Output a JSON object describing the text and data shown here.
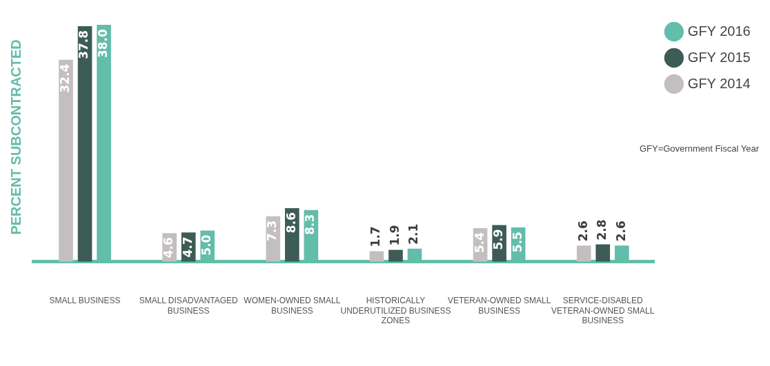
{
  "chart_data": {
    "type": "bar",
    "ylabel": "PERCENT SUBCONTRACTED",
    "categories": [
      "SMALL BUSINESS",
      "SMALL DISADVANTAGED BUSINESS",
      "WOMEN-OWNED SMALL BUSINESS",
      "HISTORICALLY UNDERUTILIZED BUSINESS ZONES",
      "VETERAN-OWNED SMALL BUSINESS",
      "SERVICE-DISABLED VETERAN-OWNED SMALL BUSINESS"
    ],
    "series": [
      {
        "name": "GFY 2014",
        "color": "#c4bfbf",
        "values": [
          32.4,
          4.6,
          7.3,
          1.7,
          5.4,
          2.6
        ],
        "value_labels": [
          "32.4",
          "4.6",
          "7.3",
          "1.7",
          "5.4",
          "2.6"
        ]
      },
      {
        "name": "GFY 2015",
        "color": "#3d5c56",
        "values": [
          37.8,
          4.7,
          8.6,
          1.9,
          5.9,
          2.8
        ],
        "value_labels": [
          "37.8",
          "4.7",
          "8.6",
          "1.9",
          "5.9",
          "2.8"
        ]
      },
      {
        "name": "GFY 2016",
        "color": "#62bdaa",
        "values": [
          38.0,
          5.0,
          8.3,
          2.1,
          5.5,
          2.6
        ],
        "value_labels": [
          "38.0",
          "5.0",
          "8.3",
          "2.1",
          "5.5",
          "2.6"
        ]
      }
    ],
    "legend": "top right",
    "annotations": [
      "GFY=Government Fiscal Year"
    ]
  }
}
